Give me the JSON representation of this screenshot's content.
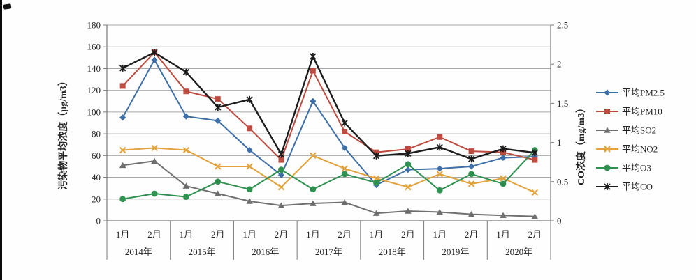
{
  "page": {
    "background": "#ffffff"
  },
  "chart_data": {
    "type": "line",
    "title": "",
    "grid": true,
    "legend_position": "right",
    "y_left": {
      "label": "污染物平均浓度（μg/m3）",
      "min": 0,
      "max": 180,
      "step": 20
    },
    "y_right": {
      "label": "CO浓度（mg/m3）",
      "min": 0,
      "max": 2.5,
      "step": 0.5
    },
    "x": {
      "years": [
        "2014年",
        "2015年",
        "2016年",
        "2017年",
        "2018年",
        "2019年",
        "2020年"
      ],
      "months_per_year": [
        "1月",
        "2月"
      ]
    },
    "series": [
      {
        "name": "平均PM2.5",
        "axis": "left",
        "color": "#3E6FA8",
        "marker": "diamond",
        "values": [
          95,
          148,
          96,
          92,
          65,
          42,
          110,
          67,
          33,
          47,
          48,
          50,
          58,
          59
        ]
      },
      {
        "name": "平均PM10",
        "axis": "left",
        "color": "#BE4B3F",
        "marker": "square",
        "values": [
          124,
          155,
          119,
          112,
          85,
          56,
          138,
          82,
          63,
          66,
          77,
          64,
          63,
          56
        ]
      },
      {
        "name": "平均SO2",
        "axis": "left",
        "color": "#6F6F6F",
        "marker": "triangle",
        "values": [
          51,
          55,
          32,
          25,
          18,
          14,
          16,
          17,
          7,
          9,
          8,
          6,
          5,
          4
        ]
      },
      {
        "name": "平均NO2",
        "axis": "left",
        "color": "#E2A23C",
        "marker": "x",
        "values": [
          65,
          67,
          65,
          50,
          50,
          31,
          60,
          48,
          39,
          31,
          43,
          34,
          39,
          26
        ]
      },
      {
        "name": "平均O3",
        "axis": "left",
        "color": "#2E9150",
        "marker": "circle",
        "values": [
          20,
          25,
          22,
          36,
          29,
          47,
          29,
          43,
          35,
          52,
          28,
          43,
          34,
          65
        ]
      },
      {
        "name": "平均CO",
        "axis": "right",
        "color": "#1C1C1C",
        "marker": "star",
        "values": [
          1.95,
          2.15,
          1.9,
          1.45,
          1.55,
          0.85,
          2.1,
          1.25,
          0.83,
          0.86,
          0.94,
          0.79,
          0.92,
          0.87
        ]
      }
    ],
    "style": {
      "grid_color": "#A8A8A8",
      "axis_color": "#7A7A7A",
      "text_color": "#262626"
    }
  }
}
